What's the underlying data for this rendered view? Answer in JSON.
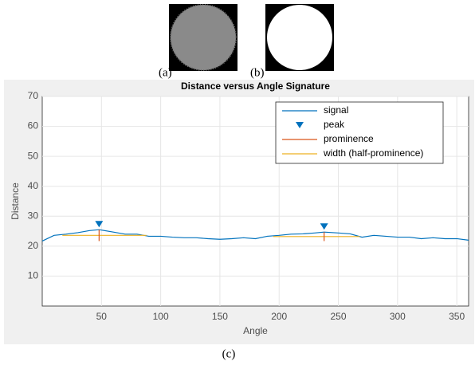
{
  "panels": {
    "a": "(a)",
    "b": "(b)",
    "c": "(c)"
  },
  "chart_data": {
    "type": "line",
    "title": "Distance versus Angle Signature",
    "xlabel": "Angle",
    "ylabel": "Distance",
    "x": [
      0,
      10,
      20,
      30,
      40,
      48,
      60,
      70,
      80,
      90,
      100,
      110,
      120,
      130,
      140,
      150,
      160,
      170,
      180,
      190,
      200,
      210,
      220,
      230,
      238,
      250,
      260,
      270,
      280,
      290,
      300,
      310,
      320,
      330,
      340,
      350,
      360
    ],
    "series": [
      {
        "name": "signal",
        "color": "#0072BD",
        "values": [
          21.7,
          23.6,
          24,
          24.5,
          25.2,
          25.5,
          24.7,
          24,
          24,
          23.3,
          23.3,
          23,
          22.8,
          22.8,
          22.5,
          22.3,
          22.5,
          22.8,
          22.5,
          23.3,
          23.6,
          24,
          24.1,
          24.4,
          24.7,
          24.4,
          24.1,
          23,
          23.6,
          23.3,
          23,
          23,
          22.5,
          22.8,
          22.5,
          22.5,
          22
        ]
      }
    ],
    "peaks": {
      "name": "peak",
      "color": "#0072BD",
      "items": [
        {
          "x": 48,
          "value": 25.5,
          "prominence": 3.8,
          "width_height": 23.6,
          "width_range": [
            17,
            88
          ]
        },
        {
          "x": 238,
          "value": 24.7,
          "prominence": 3,
          "width_height": 23.2,
          "width_range": [
            195,
            268
          ]
        }
      ]
    },
    "prominence": {
      "name": "prominence",
      "color": "#D95319"
    },
    "width": {
      "name": "width (half-prominence)",
      "color": "#EDB120"
    },
    "xlim": [
      0,
      360
    ],
    "ylim": [
      0,
      70
    ],
    "xticks": [
      50,
      100,
      150,
      200,
      250,
      300,
      350
    ],
    "yticks": [
      10,
      20,
      30,
      40,
      50,
      60,
      70
    ],
    "grid": true,
    "legend": "upper right"
  }
}
